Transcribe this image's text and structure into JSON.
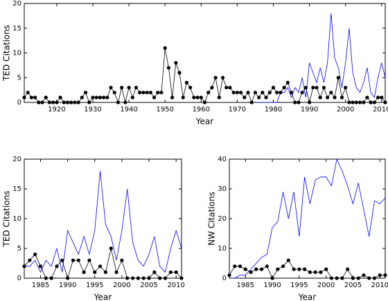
{
  "chart_data": [
    {
      "type": "line",
      "xlabel": "Year",
      "ylabel": "TED Citations",
      "x": [
        1911,
        1912,
        1913,
        1914,
        1915,
        1916,
        1917,
        1918,
        1919,
        1920,
        1921,
        1922,
        1923,
        1924,
        1925,
        1926,
        1927,
        1928,
        1929,
        1930,
        1931,
        1932,
        1933,
        1934,
        1935,
        1936,
        1937,
        1938,
        1939,
        1940,
        1941,
        1942,
        1943,
        1944,
        1945,
        1946,
        1947,
        1948,
        1949,
        1950,
        1951,
        1952,
        1953,
        1954,
        1955,
        1956,
        1957,
        1958,
        1959,
        1960,
        1961,
        1962,
        1963,
        1964,
        1965,
        1966,
        1967,
        1968,
        1969,
        1970,
        1971,
        1972,
        1973,
        1974,
        1975,
        1976,
        1977,
        1978,
        1979,
        1980,
        1981,
        1982,
        1983,
        1984,
        1985,
        1986,
        1987,
        1988,
        1989,
        1990,
        1991,
        1992,
        1993,
        1994,
        1995,
        1996,
        1997,
        1998,
        1999,
        2000,
        2001,
        2002,
        2003,
        2004,
        2005,
        2006,
        2007,
        2008,
        2009,
        2010,
        2011
      ],
      "series": [
        {
          "color": "#0000ff",
          "values": [
            null,
            null,
            null,
            null,
            null,
            null,
            null,
            null,
            null,
            null,
            null,
            null,
            null,
            null,
            null,
            null,
            null,
            null,
            null,
            null,
            null,
            null,
            null,
            null,
            null,
            null,
            null,
            null,
            null,
            null,
            null,
            null,
            null,
            null,
            null,
            null,
            null,
            null,
            null,
            null,
            null,
            null,
            null,
            null,
            null,
            null,
            null,
            null,
            null,
            null,
            null,
            null,
            null,
            null,
            null,
            null,
            null,
            null,
            null,
            null,
            null,
            null,
            null,
            null,
            0,
            0,
            0,
            0,
            0,
            0,
            0,
            2,
            2,
            3,
            1,
            3,
            2,
            5,
            1,
            8,
            6,
            4,
            7,
            4,
            8,
            18,
            9,
            7,
            3,
            8,
            15,
            6,
            3,
            2,
            4,
            7,
            2,
            1,
            5,
            8,
            5
          ]
        },
        {
          "color": "#000000",
          "marker": "circle",
          "values": [
            1,
            2,
            1,
            1,
            0,
            0,
            1,
            0,
            0,
            0,
            1,
            0,
            0,
            0,
            0,
            0,
            1,
            2,
            0,
            1,
            1,
            1,
            1,
            1,
            3,
            2,
            0,
            3,
            0,
            3,
            1,
            3,
            2,
            2,
            2,
            2,
            1,
            2,
            2,
            11,
            7,
            1,
            8,
            6,
            1,
            4,
            3,
            1,
            1,
            1,
            0,
            2,
            3,
            5,
            1,
            5,
            3,
            3,
            2,
            2,
            2,
            1,
            2,
            0,
            2,
            1,
            2,
            1,
            2,
            3,
            2,
            2,
            3,
            4,
            2,
            0,
            0,
            2,
            3,
            0,
            3,
            3,
            1,
            3,
            1,
            2,
            1,
            5,
            1,
            3,
            0,
            0,
            0,
            0,
            0,
            1,
            0,
            0,
            1,
            1,
            0
          ]
        }
      ],
      "xlim": [
        1911,
        2011
      ],
      "ylim": [
        0,
        20
      ],
      "xticks": [
        1920,
        1930,
        1940,
        1950,
        1960,
        1970,
        1980,
        1990,
        2000,
        2010
      ],
      "yticks": [
        0,
        5,
        10,
        15,
        20
      ]
    },
    {
      "type": "line",
      "xlabel": "Year",
      "ylabel": "TED Citations",
      "x": [
        1982,
        1983,
        1984,
        1985,
        1986,
        1987,
        1988,
        1989,
        1990,
        1991,
        1992,
        1993,
        1994,
        1995,
        1996,
        1997,
        1998,
        1999,
        2000,
        2001,
        2002,
        2003,
        2004,
        2005,
        2006,
        2007,
        2008,
        2009,
        2010,
        2011
      ],
      "series": [
        {
          "color": "#0000ff",
          "values": [
            2,
            2,
            3,
            1,
            3,
            2,
            5,
            1,
            8,
            6,
            4,
            7,
            4,
            8,
            18,
            9,
            7,
            3,
            8,
            15,
            6,
            3,
            2,
            4,
            7,
            2,
            1,
            5,
            8,
            5
          ]
        },
        {
          "color": "#000000",
          "marker": "circle",
          "values": [
            2,
            3,
            4,
            2,
            0,
            0,
            2,
            3,
            0,
            3,
            3,
            1,
            3,
            1,
            2,
            1,
            5,
            1,
            3,
            0,
            0,
            0,
            0,
            0,
            1,
            0,
            0,
            1,
            1,
            0
          ]
        }
      ],
      "xlim": [
        1982,
        2011
      ],
      "ylim": [
        0,
        20
      ],
      "xticks": [
        1985,
        1990,
        1995,
        2000,
        2005,
        2010
      ],
      "yticks": [
        0,
        5,
        10,
        15,
        20
      ]
    },
    {
      "type": "line",
      "xlabel": "Year",
      "ylabel": "NW Citations",
      "x": [
        1982,
        1983,
        1984,
        1985,
        1986,
        1987,
        1988,
        1989,
        1990,
        1991,
        1992,
        1993,
        1994,
        1995,
        1996,
        1997,
        1998,
        1999,
        2000,
        2001,
        2002,
        2003,
        2004,
        2005,
        2006,
        2007,
        2008,
        2009,
        2010,
        2011
      ],
      "series": [
        {
          "color": "#0000ff",
          "values": [
            0,
            0,
            1,
            1,
            3,
            5,
            7,
            8,
            17,
            19,
            29,
            20,
            29,
            14,
            34,
            25,
            33,
            34,
            34,
            31,
            40,
            36,
            31,
            25,
            32,
            23,
            14,
            26,
            25,
            27
          ]
        },
        {
          "color": "#000000",
          "marker": "circle",
          "values": [
            1,
            4,
            4,
            3,
            2,
            3,
            3,
            4,
            0,
            3,
            4,
            6,
            3,
            3,
            3,
            2,
            2,
            2,
            3,
            0,
            0,
            0,
            3,
            0,
            0,
            1,
            0,
            0,
            1,
            1
          ]
        }
      ],
      "xlim": [
        1982,
        2011
      ],
      "ylim": [
        0,
        40
      ],
      "xticks": [
        1985,
        1990,
        1995,
        2000,
        2005,
        2010
      ],
      "yticks": [
        0,
        10,
        20,
        30,
        40
      ]
    }
  ]
}
